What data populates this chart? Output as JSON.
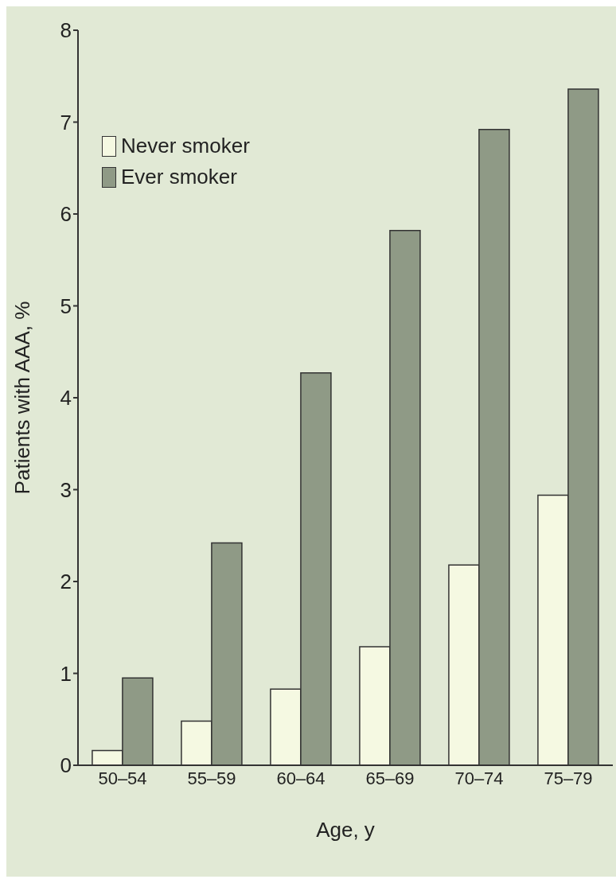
{
  "chart_data": {
    "type": "bar",
    "xlabel": "Age, y",
    "ylabel": "Patients with AAA, %",
    "categories": [
      "50–54",
      "55–59",
      "60–64",
      "65–69",
      "70–74",
      "75–79"
    ],
    "series": [
      {
        "name": "Never smoker",
        "color": "#f5f9e2",
        "values": [
          0.16,
          0.48,
          0.83,
          1.29,
          2.18,
          2.94
        ]
      },
      {
        "name": "Ever smoker",
        "color": "#8f9a86",
        "values": [
          0.95,
          2.42,
          4.27,
          5.82,
          6.92,
          7.36
        ]
      }
    ],
    "ylim": [
      0,
      8
    ],
    "yticks": [
      0,
      1,
      2,
      3,
      4,
      5,
      6,
      7,
      8
    ],
    "grid": false,
    "legend": "top left"
  }
}
